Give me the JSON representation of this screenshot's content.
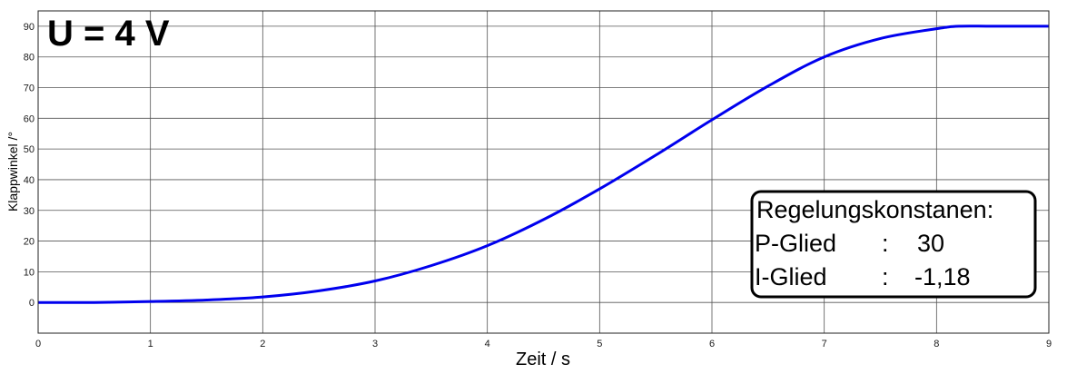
{
  "chart_data": {
    "type": "line",
    "title": "U = 4 V",
    "xlabel": "Zeit / s",
    "ylabel": "Klappwinkel /°",
    "xlim": [
      0,
      9
    ],
    "ylim": [
      -10,
      95
    ],
    "xticks": [
      0,
      1,
      2,
      3,
      4,
      5,
      6,
      7,
      8,
      9
    ],
    "yticks": [
      0,
      10,
      20,
      30,
      40,
      50,
      60,
      70,
      80,
      90
    ],
    "grid": true,
    "series": [
      {
        "color": "#0000ee",
        "x": [
          0,
          0.5,
          1,
          1.5,
          2,
          2.5,
          3,
          3.5,
          4,
          4.5,
          5,
          5.5,
          6,
          6.5,
          7,
          7.5,
          8,
          8.2,
          8.5,
          9
        ],
        "y": [
          0,
          0,
          0.3,
          0.8,
          1.8,
          3.8,
          7,
          12,
          18.5,
          27,
          37,
          48,
          59.5,
          70.5,
          80,
          86,
          89.2,
          90,
          90,
          90
        ]
      }
    ],
    "annotation": {
      "heading": "Regelungskonstanen:",
      "rows": [
        {
          "name": "P-Glied",
          "sep": ":",
          "value": "30"
        },
        {
          "name": "I-Glied",
          "sep": ":",
          "value": "-1,18"
        }
      ]
    }
  }
}
